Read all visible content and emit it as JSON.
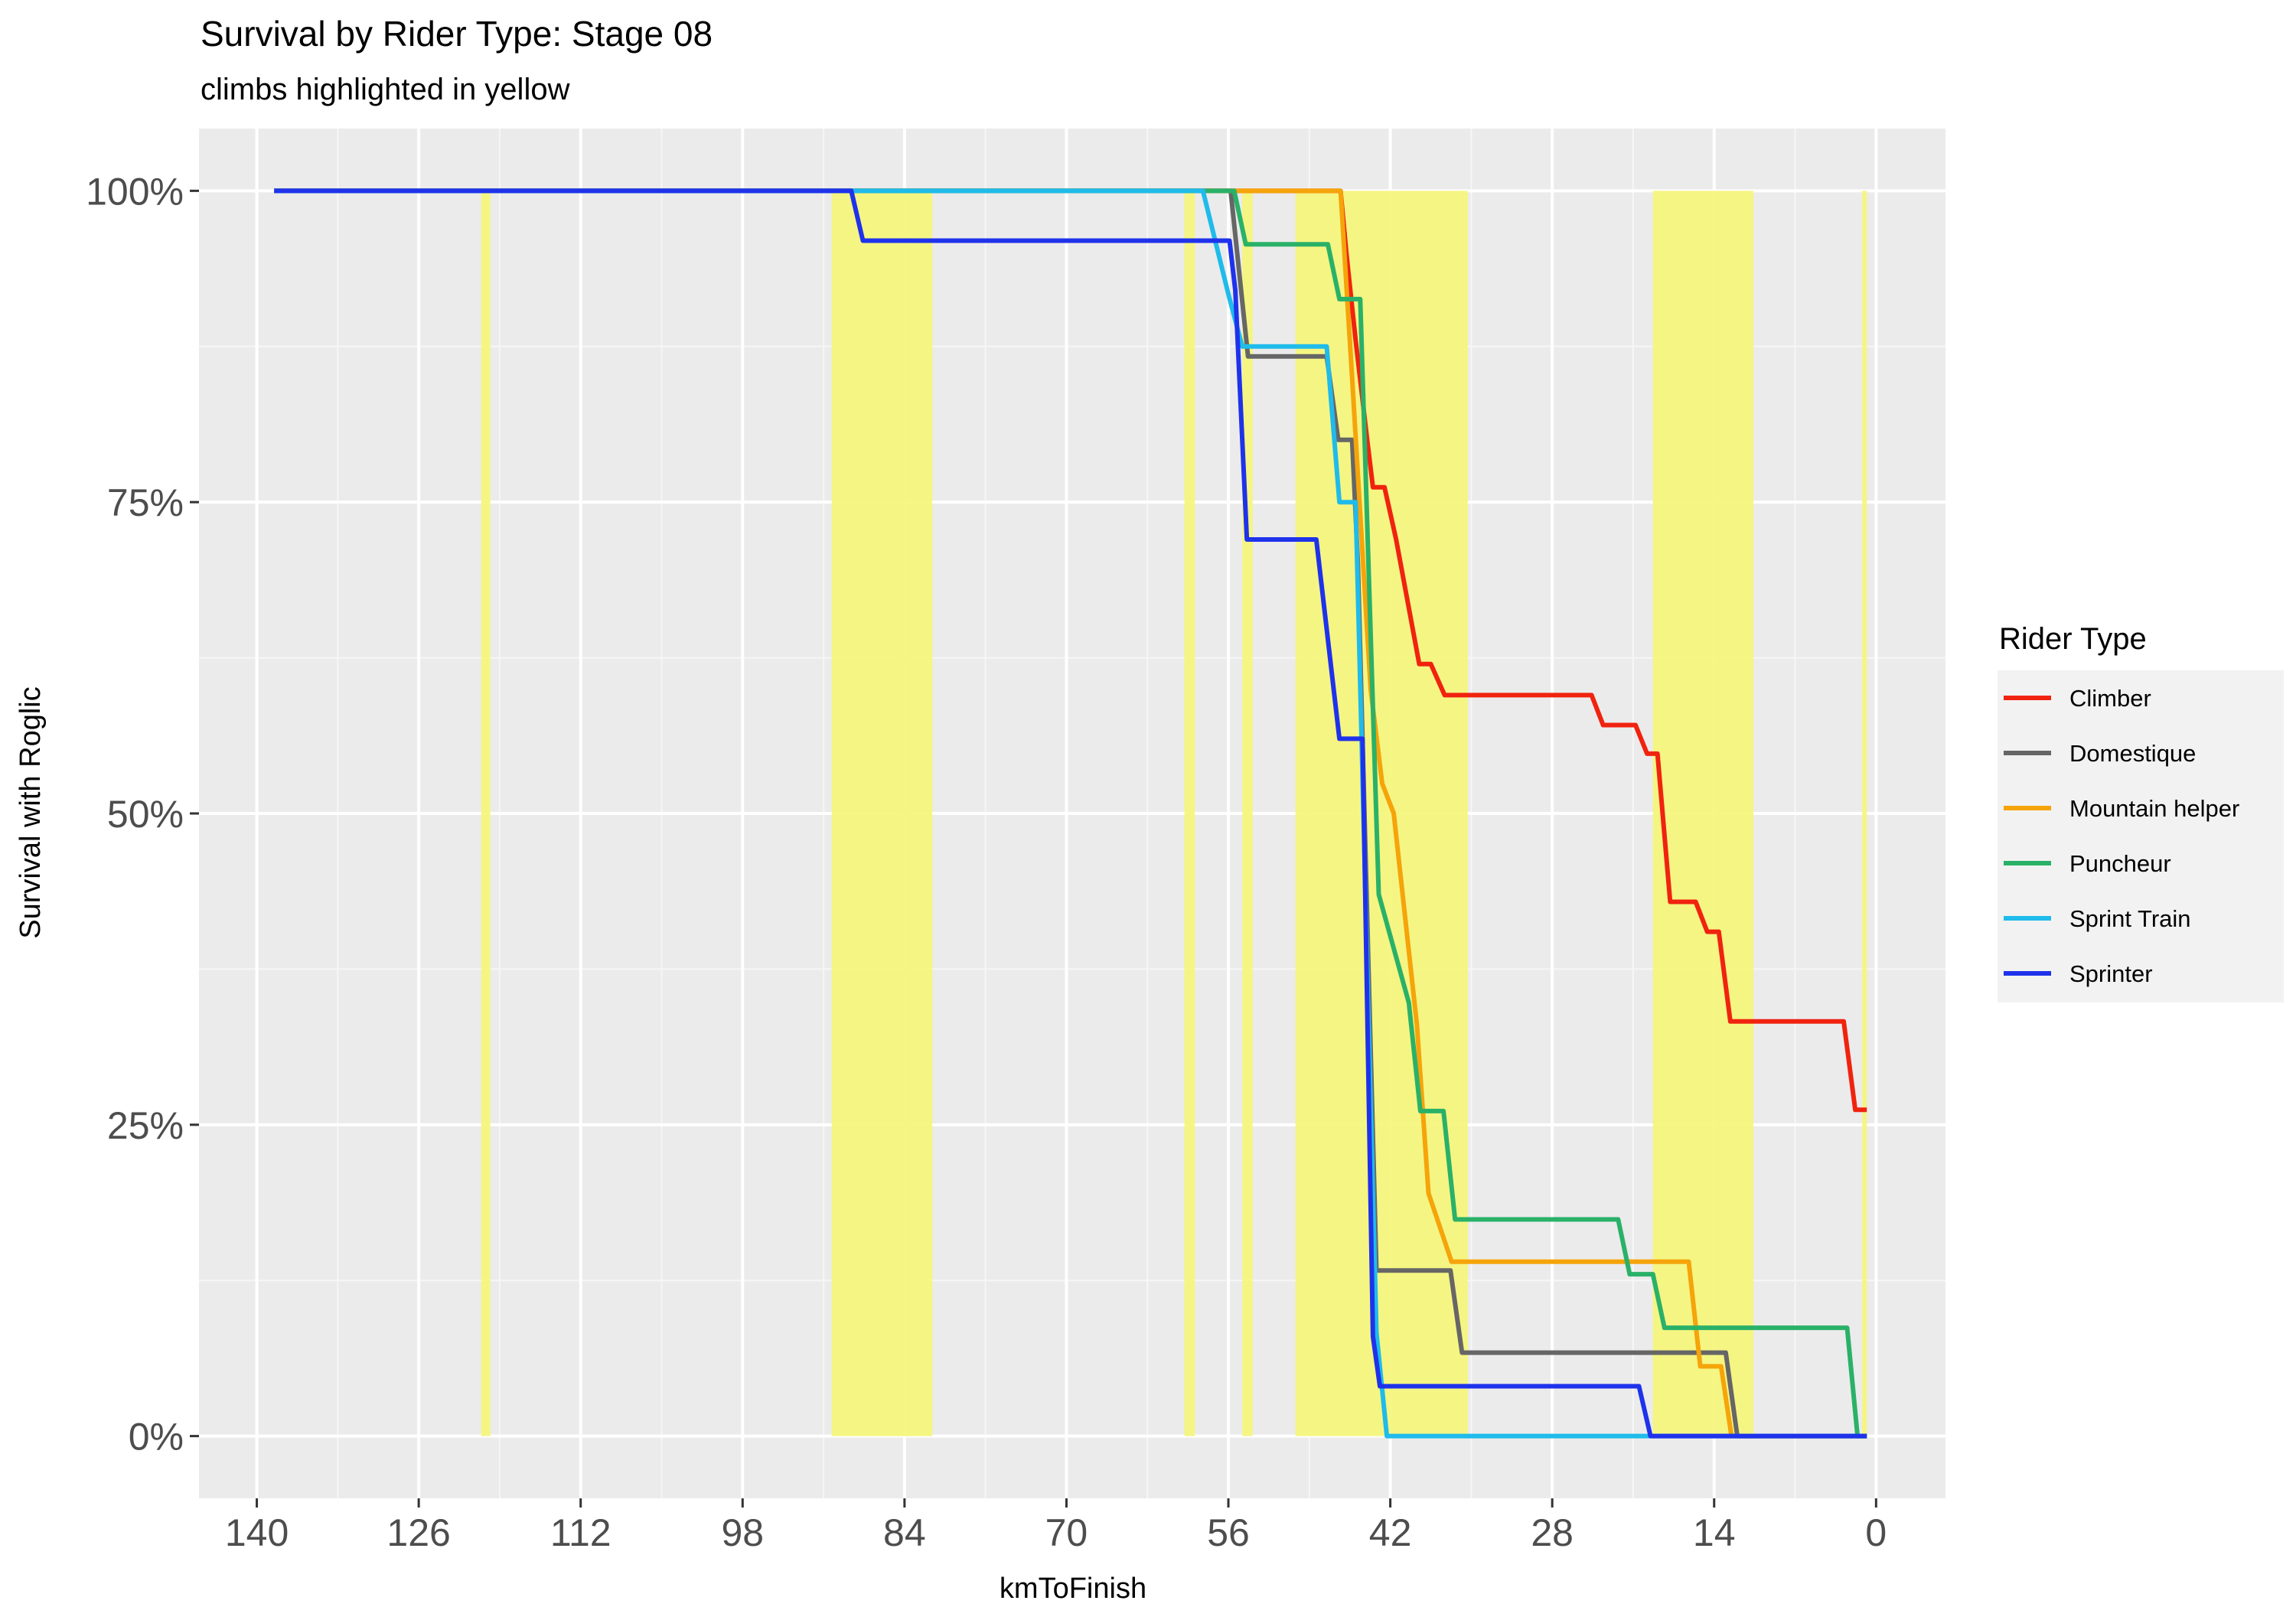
{
  "chart_data": {
    "type": "line",
    "title": "Survival by Rider Type: Stage 08",
    "subtitle": "climbs highlighted in yellow",
    "xlabel": "kmToFinish",
    "ylabel": "Survival with Roglic",
    "x_reversed": true,
    "xlim": [
      145,
      -6
    ],
    "ylim": [
      -0.05,
      1.05
    ],
    "x_ticks": [
      140,
      126,
      112,
      98,
      84,
      70,
      56,
      42,
      28,
      14,
      0
    ],
    "x_tick_labels": [
      "140",
      "126",
      "112",
      "98",
      "84",
      "70",
      "56",
      "42",
      "28",
      "14",
      "0"
    ],
    "y_ticks": [
      0,
      0.25,
      0.5,
      0.75,
      1
    ],
    "y_tick_labels": [
      "0%",
      "25%",
      "50%",
      "75%",
      "100%"
    ],
    "grid": true,
    "legend_position": "right",
    "legend_title": "Rider Type",
    "climbs_color": "#f5f57a",
    "climbs": [
      [
        120.6,
        119.8
      ],
      [
        90.3,
        81.6
      ],
      [
        59.8,
        58.9
      ],
      [
        54.8,
        53.9
      ],
      [
        50.2,
        35.3
      ],
      [
        19.3,
        10.6
      ],
      [
        1.2,
        0.8
      ]
    ],
    "series": [
      {
        "name": "Climber",
        "color": "#f0230f",
        "points": [
          [
            138.5,
            1
          ],
          [
            46.3,
            1
          ],
          [
            45.8,
            0.95
          ],
          [
            45.0,
            0.88
          ],
          [
            44.0,
            0.8
          ],
          [
            43.5,
            0.762
          ],
          [
            42.5,
            0.762
          ],
          [
            41.5,
            0.72
          ],
          [
            39.5,
            0.62
          ],
          [
            38.5,
            0.62
          ],
          [
            37.3,
            0.595
          ],
          [
            24.6,
            0.595
          ],
          [
            23.6,
            0.571
          ],
          [
            20.8,
            0.571
          ],
          [
            19.8,
            0.548
          ],
          [
            18.9,
            0.548
          ],
          [
            17.8,
            0.429
          ],
          [
            15.6,
            0.429
          ],
          [
            14.6,
            0.405
          ],
          [
            13.6,
            0.405
          ],
          [
            12.6,
            0.333
          ],
          [
            2.8,
            0.333
          ],
          [
            1.8,
            0.262
          ],
          [
            0.8,
            0.262
          ]
        ]
      },
      {
        "name": "Domestique",
        "color": "#666666",
        "points": [
          [
            138.5,
            1
          ],
          [
            55.8,
            1
          ],
          [
            54.3,
            0.867
          ],
          [
            47.5,
            0.867
          ],
          [
            46.5,
            0.8
          ],
          [
            45.3,
            0.8
          ],
          [
            44.8,
            0.7
          ],
          [
            43.2,
            0.133
          ],
          [
            36.8,
            0.133
          ],
          [
            35.8,
            0.067
          ],
          [
            13.0,
            0.067
          ],
          [
            12.0,
            0.0
          ],
          [
            0.8,
            0.0
          ]
        ]
      },
      {
        "name": "Mountain helper",
        "color": "#f5a40a",
        "points": [
          [
            138.5,
            1
          ],
          [
            53.5,
            1
          ],
          [
            46.3,
            1
          ],
          [
            45.3,
            0.85
          ],
          [
            43.7,
            0.6
          ],
          [
            42.7,
            0.524
          ],
          [
            41.7,
            0.5
          ],
          [
            39.7,
            0.33
          ],
          [
            38.7,
            0.195
          ],
          [
            36.7,
            0.14
          ],
          [
            16.2,
            0.14
          ],
          [
            15.2,
            0.056
          ],
          [
            13.4,
            0.056
          ],
          [
            12.5,
            0.0
          ],
          [
            0.8,
            0.0
          ]
        ]
      },
      {
        "name": "Puncheur",
        "color": "#2ab168",
        "points": [
          [
            138.5,
            1
          ],
          [
            55.5,
            1
          ],
          [
            54.5,
            0.957
          ],
          [
            47.4,
            0.957
          ],
          [
            46.4,
            0.913
          ],
          [
            44.6,
            0.913
          ],
          [
            43.0,
            0.435
          ],
          [
            40.4,
            0.348
          ],
          [
            39.4,
            0.261
          ],
          [
            37.4,
            0.261
          ],
          [
            36.4,
            0.174
          ],
          [
            22.3,
            0.174
          ],
          [
            21.3,
            0.13
          ],
          [
            19.3,
            0.13
          ],
          [
            18.3,
            0.087
          ],
          [
            2.5,
            0.087
          ],
          [
            1.6,
            0.0
          ],
          [
            0.8,
            0.0
          ]
        ]
      },
      {
        "name": "Sprint Train",
        "color": "#1fbbeb",
        "points": [
          [
            138.5,
            1
          ],
          [
            58.2,
            1
          ],
          [
            56.0,
            0.917
          ],
          [
            54.8,
            0.875
          ],
          [
            47.5,
            0.875
          ],
          [
            46.4,
            0.75
          ],
          [
            45.0,
            0.75
          ],
          [
            43.2,
            0.083
          ],
          [
            42.3,
            0.0
          ],
          [
            0.8,
            0.0
          ]
        ]
      },
      {
        "name": "Sprinter",
        "color": "#1f32eb",
        "points": [
          [
            138.5,
            1
          ],
          [
            88.6,
            1
          ],
          [
            87.6,
            0.96
          ],
          [
            55.9,
            0.96
          ],
          [
            55.4,
            0.92
          ],
          [
            54.4,
            0.72
          ],
          [
            48.4,
            0.72
          ],
          [
            46.4,
            0.56
          ],
          [
            44.4,
            0.56
          ],
          [
            43.5,
            0.08
          ],
          [
            42.9,
            0.04
          ],
          [
            20.5,
            0.04
          ],
          [
            19.5,
            0.0
          ],
          [
            0.8,
            0.0
          ]
        ]
      }
    ]
  }
}
